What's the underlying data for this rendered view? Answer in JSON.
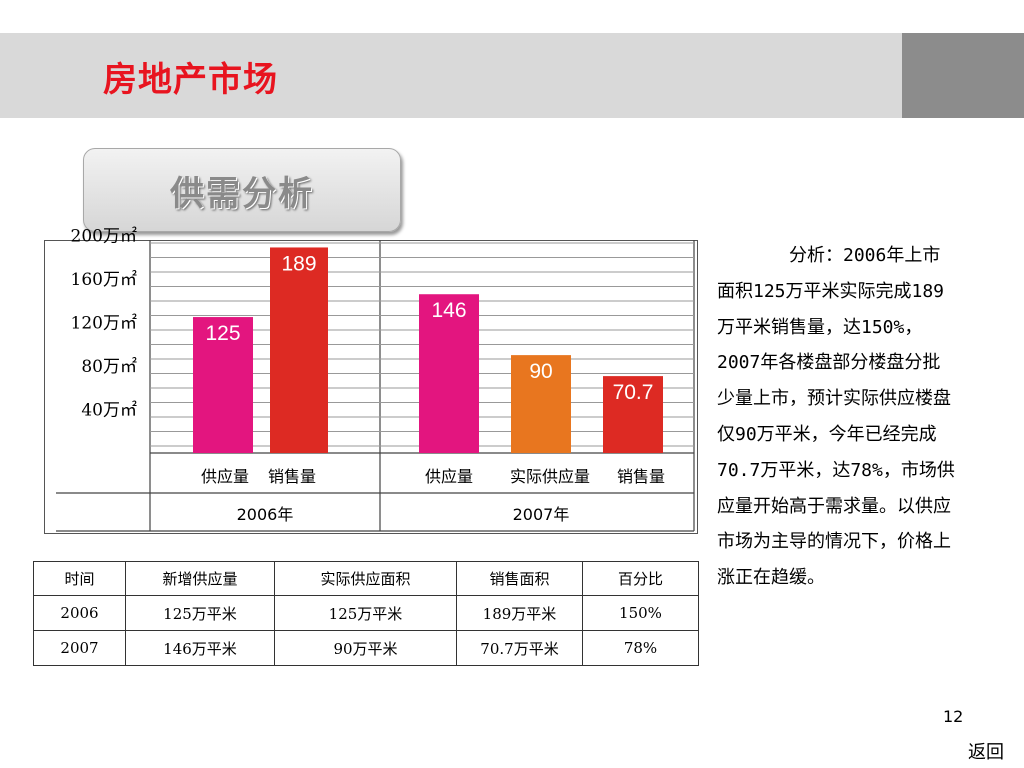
{
  "header": {
    "title": "房地产市场",
    "section_button": "供需分析"
  },
  "colors": {
    "title_red": "#e8141f",
    "supply_pink": "#e3157f",
    "sales_red": "#dd2a23",
    "actual_orange": "#e8761f"
  },
  "chart_data": {
    "type": "bar",
    "y_ticks": [
      "200万㎡",
      "160万㎡",
      "120万㎡",
      "80万㎡",
      "40万㎡"
    ],
    "groups": [
      {
        "label": "2006年",
        "categories": [
          "供应量",
          "销售量"
        ],
        "values": [
          125,
          189
        ],
        "color_keys": [
          "supply_pink",
          "sales_red"
        ]
      },
      {
        "label": "2007年",
        "categories": [
          "供应量",
          "实际供应量",
          "销售量"
        ],
        "values": [
          146,
          90,
          70.7
        ],
        "color_keys": [
          "supply_pink",
          "actual_orange",
          "sales_red"
        ]
      }
    ],
    "ylim": [
      0,
      200
    ],
    "grid": true
  },
  "analysis": {
    "text": "分析：2006年上市面积125万平米实际完成189万平米销售量，达150%，2007年各楼盘部分楼盘分批少量上市，预计实际供应楼盘仅90万平米，今年已经完成70.7万平米，达78%，市场供应量开始高于需求量。以供应市场为主导的情况下，价格上涨正在趋缓。"
  },
  "table": {
    "headers": [
      "时间",
      "新增供应量",
      "实际供应面积",
      "销售面积",
      "百分比"
    ],
    "rows": [
      [
        "2006",
        "125万平米",
        "125万平米",
        "189万平米",
        "150%"
      ],
      [
        "2007",
        "146万平米",
        "90万平米",
        "70.7万平米",
        "78%"
      ]
    ]
  },
  "footer": {
    "page_number": "12",
    "back_label": "返回"
  }
}
